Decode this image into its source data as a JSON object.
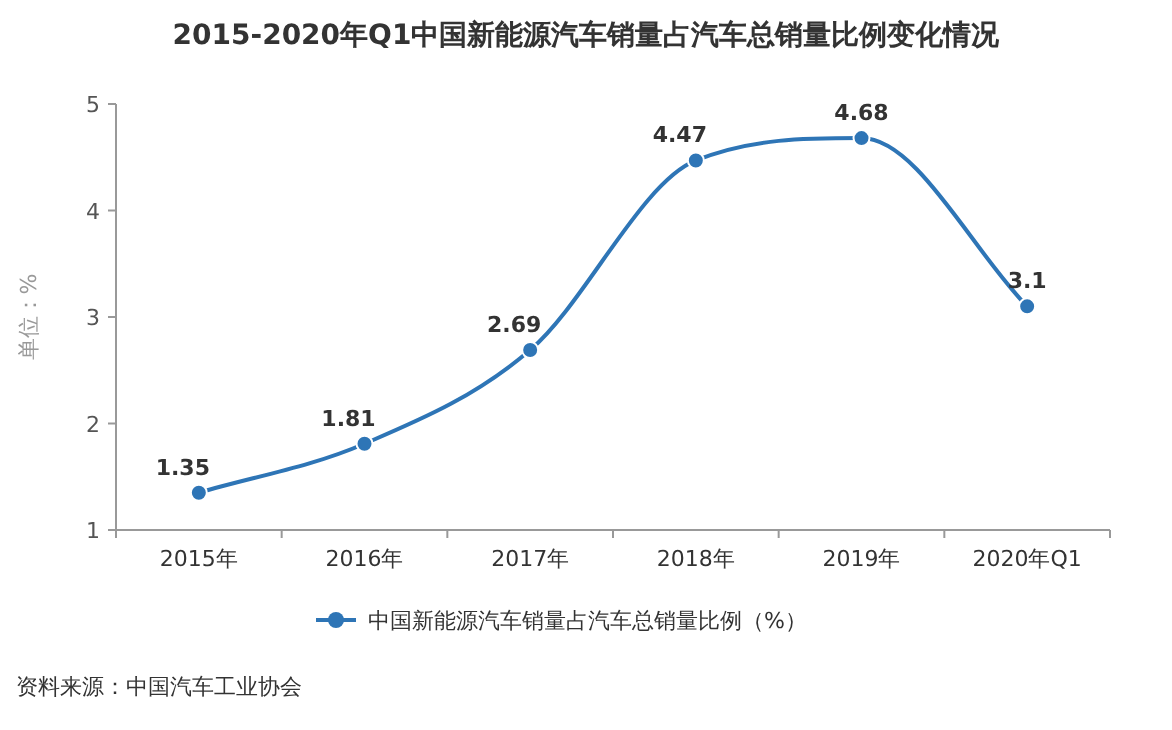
{
  "chart_data": {
    "type": "line",
    "title": "2015-2020年Q1中国新能源汽车销量占汽车总销量比例变化情况",
    "ylabel": "单位：%",
    "categories": [
      "2015年",
      "2016年",
      "2017年",
      "2018年",
      "2019年",
      "2020年Q1"
    ],
    "series": [
      {
        "name": "中国新能源汽车销量占汽车总销量比例（%）",
        "color": "#2e75b6",
        "values": [
          1.35,
          1.81,
          2.69,
          4.47,
          4.68,
          3.1
        ]
      }
    ],
    "ylim": [
      1,
      5
    ],
    "yticks": [
      1,
      2,
      3,
      4,
      5
    ],
    "data_labels": true,
    "legend": "bottom",
    "marker": "circle",
    "line_style": "solid",
    "annotations": [
      "资料来源：中国汽车工业协会"
    ]
  }
}
